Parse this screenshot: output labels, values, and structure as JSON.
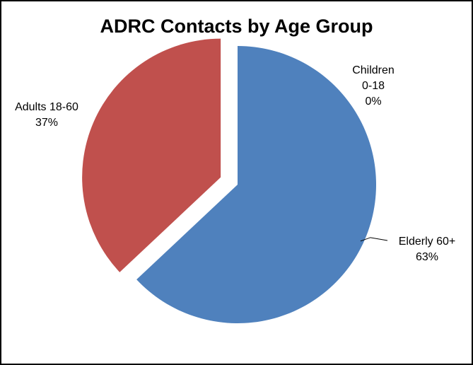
{
  "chart_data": {
    "type": "pie",
    "title": "ADRC Contacts by Age Group",
    "slices": [
      {
        "label_lines": [
          "Elderly 60+",
          "63%"
        ],
        "value": 63,
        "color": "#4F81BD",
        "exploded": false
      },
      {
        "label_lines": [
          "Adults 18-60",
          "37%"
        ],
        "value": 37,
        "color": "#C0504D",
        "exploded": true
      },
      {
        "label_lines": [
          "Children",
          "0-18",
          "0%"
        ],
        "value": 0,
        "color": "#9BBB59",
        "exploded": false
      }
    ],
    "start_angle_deg": 0,
    "direction": "clockwise",
    "legend": "none"
  }
}
